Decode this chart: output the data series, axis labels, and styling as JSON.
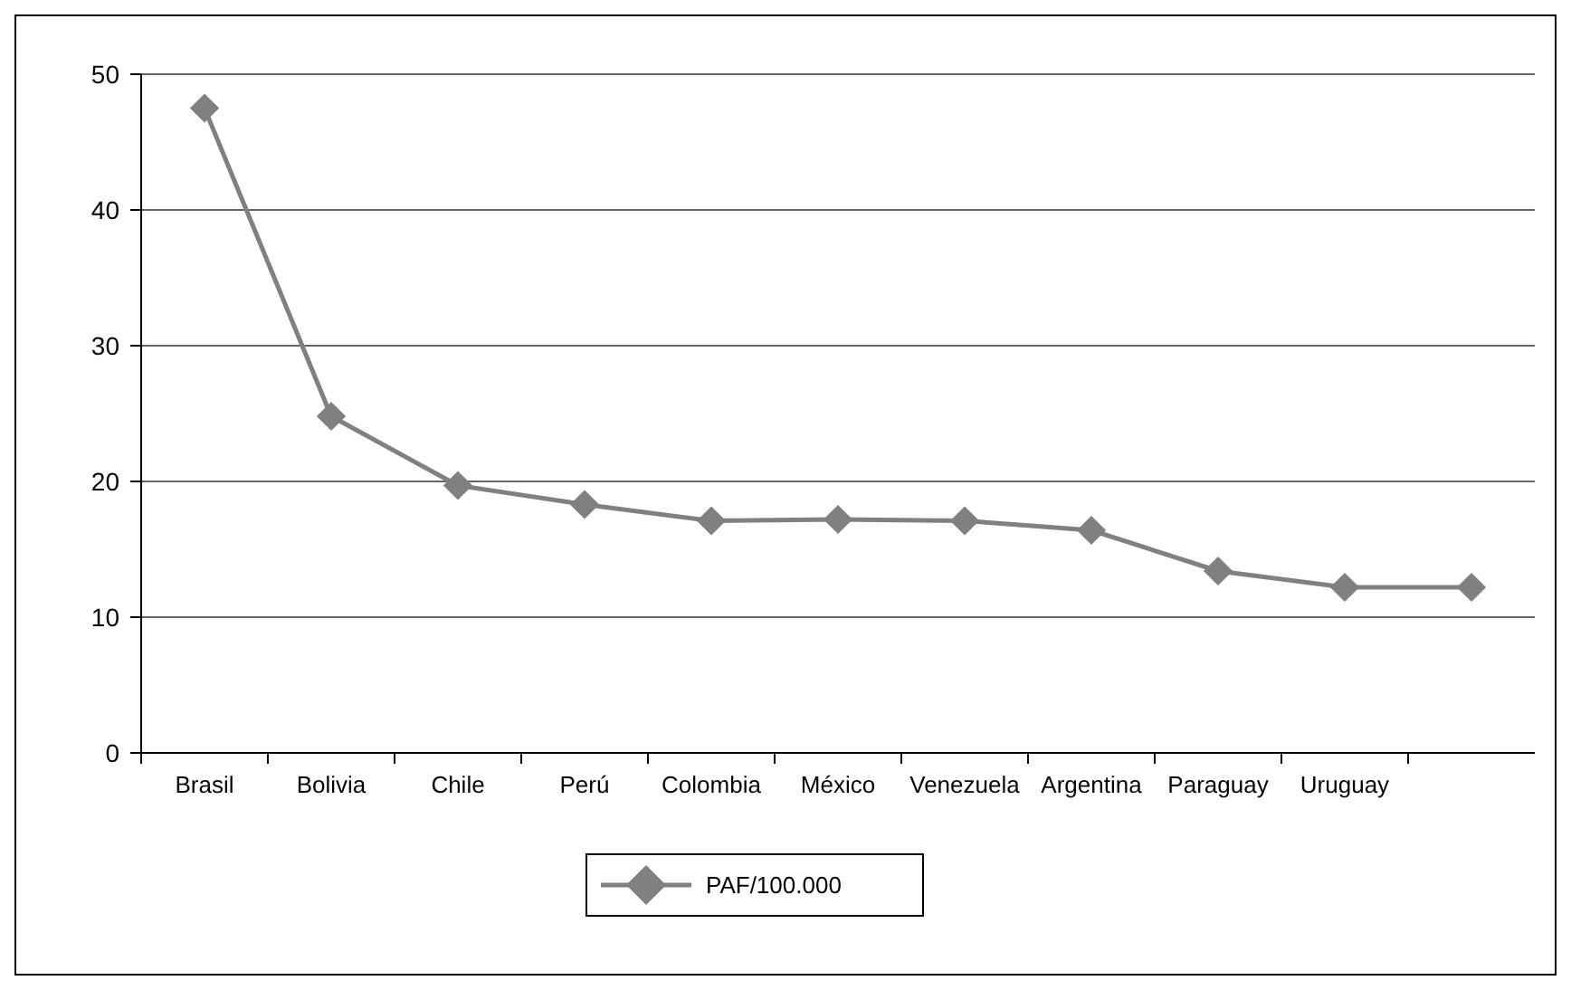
{
  "chart_data": {
    "type": "line",
    "categories": [
      "Brasil",
      "Bolivia",
      "Chile",
      "Perú",
      "Colombia",
      "México",
      "Venezuela",
      "Argentina",
      "Paraguay",
      "Uruguay",
      null
    ],
    "series": [
      {
        "name": "PAF/100.000",
        "color": "#808080",
        "values": [
          47.5,
          24.8,
          19.7,
          18.3,
          17.1,
          17.2,
          17.1,
          16.4,
          13.4,
          12.2,
          12.2
        ]
      }
    ],
    "ylim": [
      0,
      50
    ],
    "yticks": [
      0,
      10,
      20,
      30,
      40,
      50
    ],
    "grid": "y",
    "legend": "bottom",
    "marker": "diamond",
    "line_style": "solid"
  }
}
